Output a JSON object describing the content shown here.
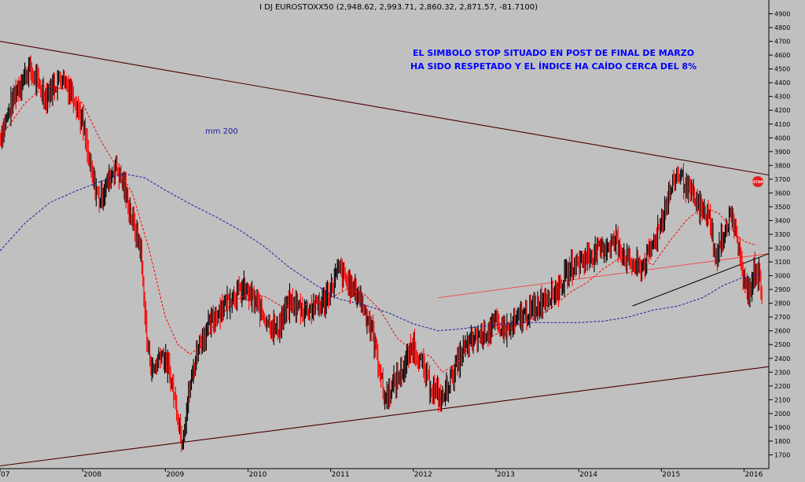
{
  "chart_data": {
    "type": "line",
    "title": "I DJ EUROSTOXX50 (2,948.62, 2,993.71, 2,860.32, 2,871.57, -81.7100)",
    "annotation": [
      "EL SIMBOLO STOP SITUADO EN POST DE FINAL DE MARZO",
      "HA SIDO RESPETADO Y EL ÍNDICE HA CAÍDO CERCA DEL 8%"
    ],
    "ma_label": "mm 200",
    "stop_label": "STOP",
    "ylim": [
      1600,
      5000
    ],
    "yticks": [
      1700,
      1800,
      1900,
      2000,
      2100,
      2200,
      2300,
      2400,
      2500,
      2600,
      2700,
      2800,
      2900,
      3000,
      3100,
      3200,
      3300,
      3400,
      3500,
      3600,
      3700,
      3800,
      3900,
      4000,
      4100,
      4200,
      4300,
      4400,
      4500,
      4600,
      4700,
      4800,
      4900
    ],
    "xlim": [
      2007.0,
      2016.3
    ],
    "xticks": [
      "07",
      "2008",
      "2009",
      "2010",
      "2011",
      "2012",
      "2013",
      "2014",
      "2015",
      "2016"
    ],
    "xtick_years": [
      2007.0,
      2008.0,
      2009.0,
      2010.0,
      2011.0,
      2012.0,
      2013.0,
      2014.0,
      2015.0,
      2016.0
    ],
    "colors": {
      "background": "#c0c0c0",
      "up": "#000000",
      "down": "#ff0000",
      "ma_short": "#ff0000",
      "ma200": "#1a1aa0",
      "channel": "#4a0000",
      "annotation": "#0000ff"
    },
    "series": [
      {
        "name": "price",
        "x": [
          2007.0,
          2007.2,
          2007.35,
          2007.55,
          2007.75,
          2007.9,
          2008.0,
          2008.1,
          2008.2,
          2008.4,
          2008.5,
          2008.6,
          2008.7,
          2008.78,
          2008.85,
          2008.95,
          2009.05,
          2009.15,
          2009.2,
          2009.3,
          2009.4,
          2009.5,
          2009.65,
          2009.8,
          2009.95,
          2010.1,
          2010.2,
          2010.35,
          2010.5,
          2010.7,
          2010.9,
          2011.0,
          2011.1,
          2011.2,
          2011.35,
          2011.5,
          2011.6,
          2011.65,
          2011.75,
          2011.9,
          2012.0,
          2012.1,
          2012.2,
          2012.35,
          2012.45,
          2012.6,
          2012.75,
          2012.9,
          2013.0,
          2013.15,
          2013.3,
          2013.45,
          2013.6,
          2013.75,
          2013.9,
          2014.0,
          2014.15,
          2014.3,
          2014.45,
          2014.6,
          2014.75,
          2014.85,
          2015.0,
          2015.1,
          2015.2,
          2015.3,
          2015.45,
          2015.6,
          2015.65,
          2015.75,
          2015.85,
          2015.95,
          2016.0,
          2016.08,
          2016.12,
          2016.18,
          2016.22
        ],
        "values": [
          4000,
          4350,
          4500,
          4300,
          4450,
          4300,
          4100,
          3750,
          3550,
          3800,
          3650,
          3400,
          3200,
          2500,
          2300,
          2450,
          2300,
          2000,
          1800,
          2200,
          2500,
          2600,
          2750,
          2850,
          2900,
          2800,
          2700,
          2600,
          2800,
          2750,
          2800,
          2900,
          3050,
          2950,
          2850,
          2600,
          2300,
          2100,
          2200,
          2350,
          2500,
          2350,
          2200,
          2100,
          2250,
          2450,
          2550,
          2600,
          2650,
          2600,
          2700,
          2750,
          2850,
          2900,
          3050,
          3100,
          3150,
          3200,
          3250,
          3100,
          3050,
          3150,
          3400,
          3600,
          3750,
          3650,
          3500,
          3400,
          3100,
          3300,
          3450,
          3150,
          2950,
          2850,
          3050,
          3000,
          2872
        ]
      },
      {
        "name": "mm 200",
        "x": [
          2007.0,
          2007.3,
          2007.6,
          2007.9,
          2008.2,
          2008.5,
          2008.75,
          2009.0,
          2009.3,
          2009.6,
          2009.9,
          2010.2,
          2010.5,
          2010.8,
          2011.1,
          2011.4,
          2011.7,
          2012.0,
          2012.3,
          2012.5,
          2012.8,
          2013.1,
          2013.4,
          2013.7,
          2014.0,
          2014.3,
          2014.6,
          2014.9,
          2015.2,
          2015.5,
          2015.75,
          2016.0,
          2016.2
        ],
        "values": [
          3180,
          3380,
          3530,
          3610,
          3680,
          3740,
          3710,
          3620,
          3520,
          3430,
          3330,
          3210,
          3060,
          2940,
          2830,
          2790,
          2730,
          2650,
          2600,
          2610,
          2630,
          2650,
          2660,
          2660,
          2660,
          2670,
          2700,
          2750,
          2780,
          2840,
          2930,
          2990,
          3010
        ]
      },
      {
        "name": "ma_short",
        "x": [
          2007.0,
          2007.3,
          2007.55,
          2007.8,
          2008.0,
          2008.2,
          2008.4,
          2008.6,
          2008.8,
          2009.0,
          2009.15,
          2009.3,
          2009.45,
          2009.6,
          2009.8,
          2010.0,
          2010.2,
          2010.4,
          2010.6,
          2010.8,
          2011.0,
          2011.2,
          2011.4,
          2011.6,
          2011.8,
          2012.0,
          2012.2,
          2012.35,
          2012.5,
          2012.7,
          2012.9,
          2013.1,
          2013.3,
          2013.5,
          2013.7,
          2013.9,
          2014.1,
          2014.3,
          2014.5,
          2014.7,
          2014.9,
          2015.1,
          2015.3,
          2015.5,
          2015.7,
          2015.9,
          2016.0,
          2016.15
        ],
        "values": [
          4000,
          4250,
          4380,
          4350,
          4250,
          4000,
          3800,
          3600,
          3200,
          2700,
          2500,
          2430,
          2500,
          2650,
          2800,
          2870,
          2850,
          2780,
          2780,
          2800,
          2840,
          2900,
          2870,
          2750,
          2550,
          2450,
          2420,
          2300,
          2350,
          2500,
          2550,
          2600,
          2650,
          2700,
          2780,
          2880,
          2950,
          3050,
          3130,
          3120,
          3080,
          3250,
          3400,
          3500,
          3450,
          3300,
          3250,
          3220
        ]
      }
    ],
    "trendlines": [
      {
        "name": "channel_upper",
        "x": [
          2007.0,
          2016.3
        ],
        "values": [
          4700,
          3730
        ]
      },
      {
        "name": "channel_lower",
        "x": [
          2007.0,
          2016.3
        ],
        "values": [
          1620,
          2340
        ]
      },
      {
        "name": "red_support",
        "x": [
          2012.3,
          2016.3
        ],
        "values": [
          2840,
          3160
        ]
      },
      {
        "name": "black_trend",
        "x": [
          2014.65,
          2016.3
        ],
        "values": [
          2780,
          3160
        ]
      }
    ]
  }
}
